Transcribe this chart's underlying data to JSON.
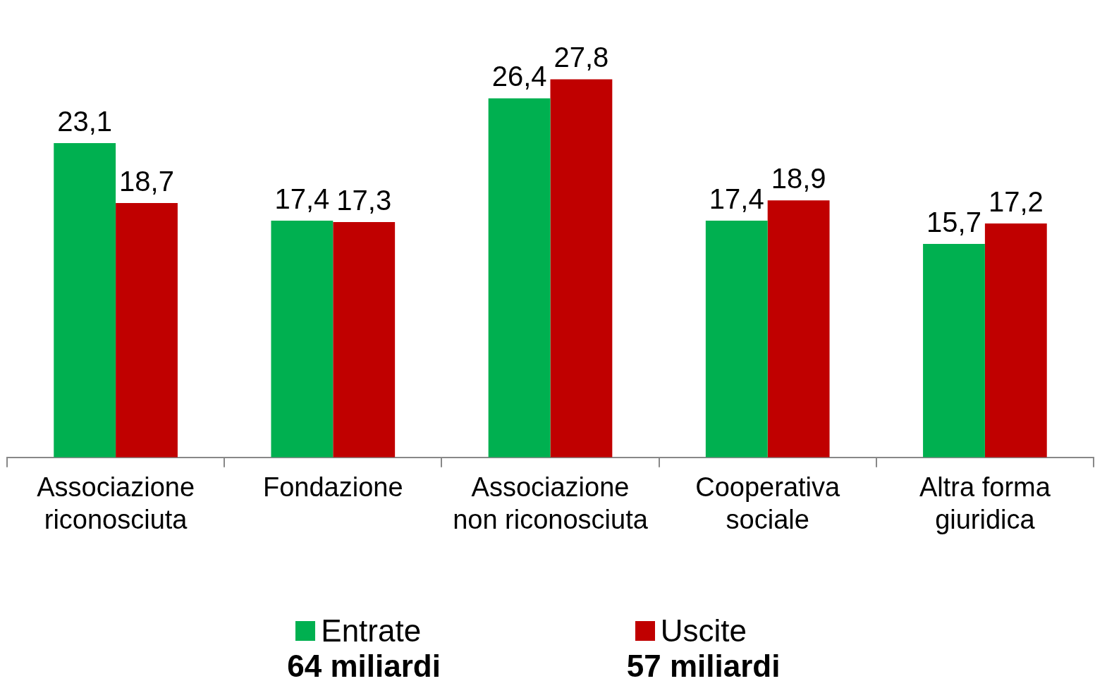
{
  "chart_data": {
    "type": "bar",
    "categories": [
      "Associazione riconosciuta",
      "Fondazione",
      "Associazione non riconosciuta",
      "Cooperativa sociale",
      "Altra forma giuridica"
    ],
    "series": [
      {
        "name": "Entrate",
        "color": "#00b050",
        "values": [
          23.1,
          17.4,
          26.4,
          17.4,
          15.7
        ],
        "value_labels": [
          "23,1",
          "17,4",
          "26,4",
          "17,4",
          "15,7"
        ]
      },
      {
        "name": "Uscite",
        "color": "#c00000",
        "values": [
          18.7,
          17.3,
          27.8,
          18.9,
          17.2
        ],
        "value_labels": [
          "18,7",
          "17,3",
          "27,8",
          "18,9",
          "17,2"
        ]
      }
    ],
    "legend": "bottom",
    "annotations": [
      "64 miliardi",
      "57 miliardi"
    ]
  }
}
